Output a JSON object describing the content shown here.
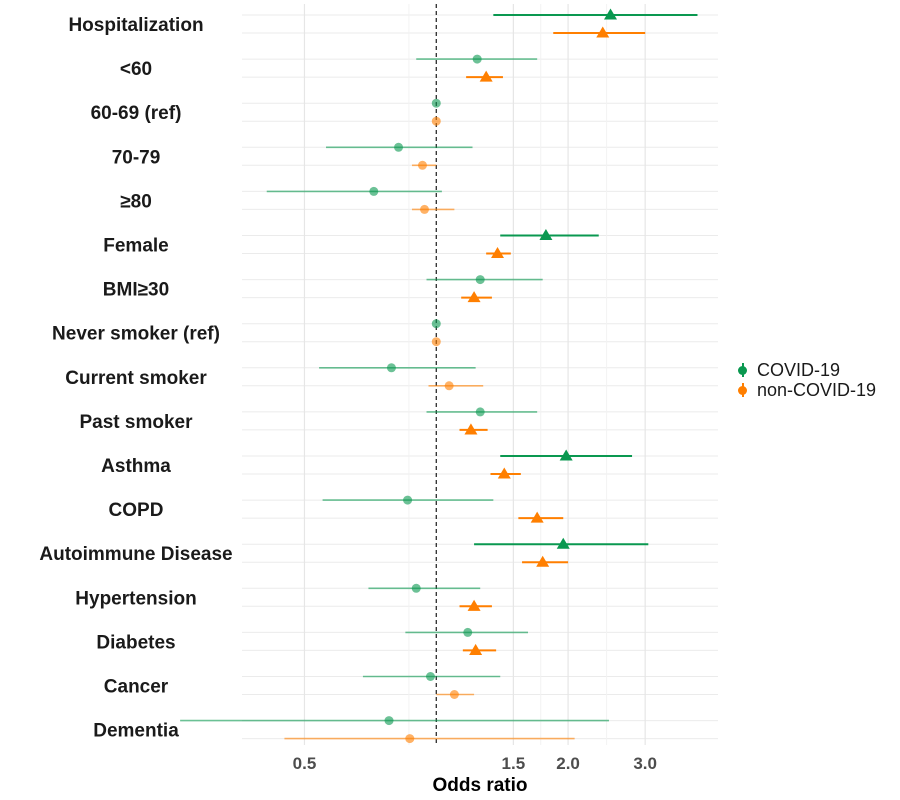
{
  "chart_data": {
    "type": "scatter",
    "subtype": "forest-plot",
    "title": "",
    "xlabel": "Odds ratio",
    "ylabel": "",
    "x_scale": "log",
    "xlim": [
      0.36,
      4.4
    ],
    "x_ticks": [
      0.5,
      1.5,
      2.0,
      3.0
    ],
    "x_tick_labels": [
      "0.5",
      "1.5",
      "2.0",
      "3.0"
    ],
    "reference_line": 1,
    "grid": true,
    "legend_position": "right",
    "categories": [
      "Hospitalization",
      "<60",
      "60-69 (ref)",
      "70-79",
      "≥80",
      "Female",
      "BMI≥30",
      "Never smoker (ref)",
      "Current smoker",
      "Past smoker",
      "Asthma",
      "COPD",
      "Autoimmune Disease",
      "Hypertension",
      "Diabetes",
      "Cancer",
      "Dementia"
    ],
    "series": [
      {
        "name": "COVID-19",
        "color": "#0a9850",
        "estimates": [
          2.5,
          1.24,
          1.0,
          0.82,
          0.72,
          1.78,
          1.26,
          1.0,
          0.79,
          1.26,
          1.98,
          0.86,
          1.95,
          0.9,
          1.18,
          0.97,
          0.78
        ],
        "lower": [
          1.35,
          0.9,
          1.0,
          0.56,
          0.41,
          1.4,
          0.95,
          1.0,
          0.54,
          0.95,
          1.4,
          0.55,
          1.22,
          0.7,
          0.85,
          0.68,
          0.26
        ],
        "upper": [
          3.95,
          1.7,
          1.0,
          1.21,
          1.03,
          2.35,
          1.75,
          1.0,
          1.23,
          1.7,
          2.8,
          1.35,
          3.05,
          1.26,
          1.62,
          1.4,
          2.48
        ],
        "significant": [
          true,
          false,
          false,
          false,
          false,
          true,
          false,
          false,
          false,
          false,
          true,
          false,
          true,
          false,
          false,
          false,
          false
        ]
      },
      {
        "name": "non-COVID-19",
        "color": "#ff7f00",
        "estimates": [
          2.4,
          1.3,
          1.0,
          0.93,
          0.94,
          1.38,
          1.22,
          1.0,
          1.07,
          1.2,
          1.43,
          1.7,
          1.75,
          1.22,
          1.23,
          1.1,
          0.87
        ],
        "lower": [
          1.85,
          1.17,
          1.0,
          0.88,
          0.88,
          1.3,
          1.14,
          1.0,
          0.96,
          1.13,
          1.33,
          1.54,
          1.57,
          1.13,
          1.15,
          1.0,
          0.45
        ],
        "upper": [
          3.0,
          1.42,
          1.0,
          1.0,
          1.1,
          1.48,
          1.34,
          1.0,
          1.28,
          1.31,
          1.56,
          1.95,
          2.0,
          1.34,
          1.37,
          1.22,
          2.07
        ],
        "significant": [
          true,
          true,
          false,
          false,
          false,
          true,
          true,
          false,
          false,
          true,
          true,
          true,
          true,
          true,
          true,
          false,
          false
        ]
      }
    ]
  }
}
